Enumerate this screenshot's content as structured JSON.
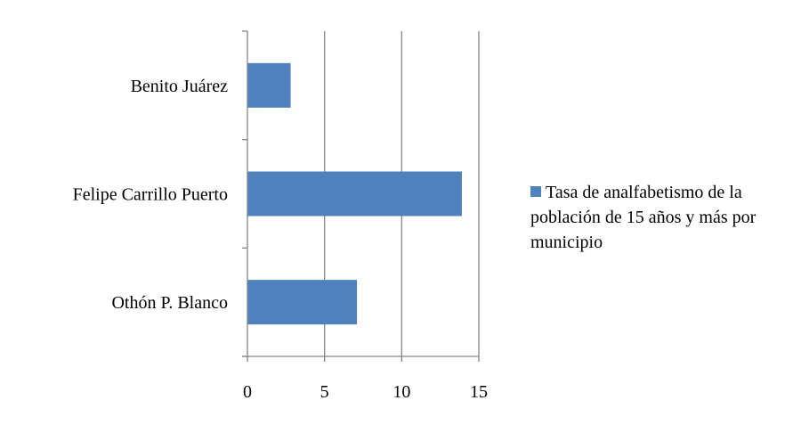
{
  "chart_data": {
    "type": "bar",
    "orientation": "horizontal",
    "categories": [
      "Benito Juárez",
      "Felipe Carrillo Puerto",
      "Othón P. Blanco"
    ],
    "series": [
      {
        "name": "Tasa de analfabetismo de la población de 15 años y más por municipio",
        "values": [
          2.8,
          13.9,
          7.1
        ],
        "color": "#4f81bd"
      }
    ],
    "xlim": [
      0,
      15
    ],
    "xticks": [
      "0",
      "5",
      "10",
      "15"
    ],
    "grid": "vertical",
    "legend_position": "right"
  }
}
